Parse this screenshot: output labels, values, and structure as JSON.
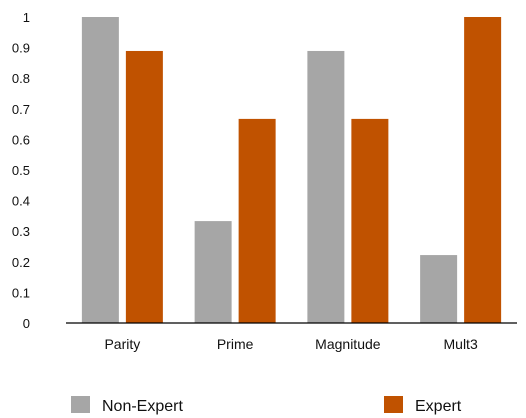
{
  "chart_data": {
    "type": "bar",
    "categories": [
      "Parity",
      "Prime",
      "Magnitude",
      "Mult3"
    ],
    "series": [
      {
        "name": "Non-Expert",
        "color": "#a6a6a6",
        "values": [
          1.0,
          0.333,
          0.889,
          0.222
        ]
      },
      {
        "name": "Expert",
        "color": "#c05200",
        "values": [
          0.889,
          0.667,
          0.667,
          1.0
        ]
      }
    ],
    "yticks": [
      "0",
      "0.1",
      "0.2",
      "0.3",
      "0.4",
      "0.5",
      "0.6",
      "0.7",
      "0.8",
      "0.9",
      "1"
    ],
    "ylim": [
      0,
      1
    ],
    "grid": false,
    "legend_position": "bottom"
  }
}
